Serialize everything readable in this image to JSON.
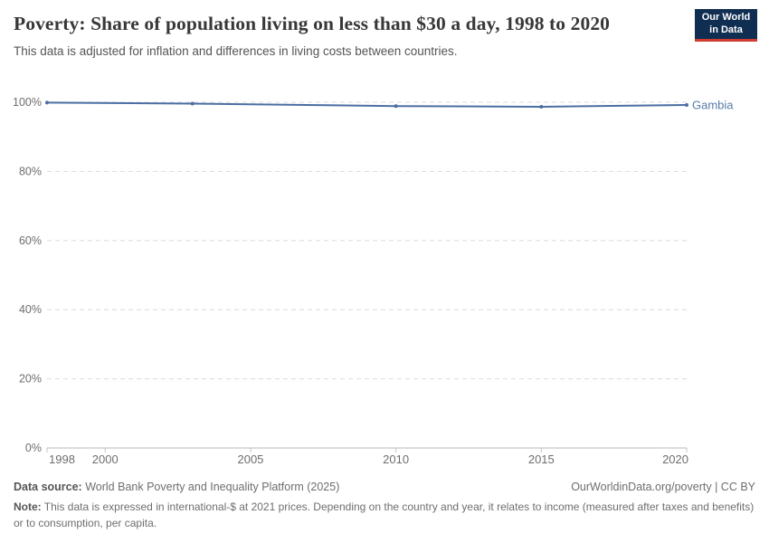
{
  "header": {
    "title": "Poverty: Share of population living on less than $30 a day, 1998 to 2020",
    "subtitle": "This data is adjusted for inflation and differences in living costs between countries.",
    "logo": {
      "line1": "Our World",
      "line2": "in Data",
      "bg_color": "#102d52",
      "bar_color": "#d13c32"
    }
  },
  "chart_data": {
    "type": "line",
    "title": "Poverty: Share of population living on less than $30 a day, 1998 to 2020",
    "unit": "%",
    "xlim": [
      1998,
      2020
    ],
    "ylim": [
      0,
      100
    ],
    "grid": "horizontal-dashed",
    "legend_position": "end-of-line-label",
    "xticks": [
      1998,
      2000,
      2005,
      2010,
      2015,
      2020
    ],
    "yticks": [
      0,
      20,
      40,
      60,
      80,
      100
    ],
    "ytick_labels": [
      "0%",
      "20%",
      "40%",
      "60%",
      "80%",
      "100%"
    ],
    "series": [
      {
        "name": "Gambia",
        "color": "#4c6ea3",
        "label_color": "#577ca9",
        "x": [
          1998,
          2003,
          2010,
          2015,
          2020
        ],
        "values": [
          99.9,
          99.6,
          98.9,
          98.7,
          99.2
        ]
      }
    ]
  },
  "footer": {
    "datasource_label": "Data source:",
    "datasource_value": "World Bank Poverty and Inequality Platform (2025)",
    "attribution": "OurWorldinData.org/poverty | CC BY",
    "note_label": "Note:",
    "note_text": "This data is expressed in international-$ at 2021 prices. Depending on the country and year, it relates to income (measured after taxes and benefits) or to consumption, per capita."
  }
}
